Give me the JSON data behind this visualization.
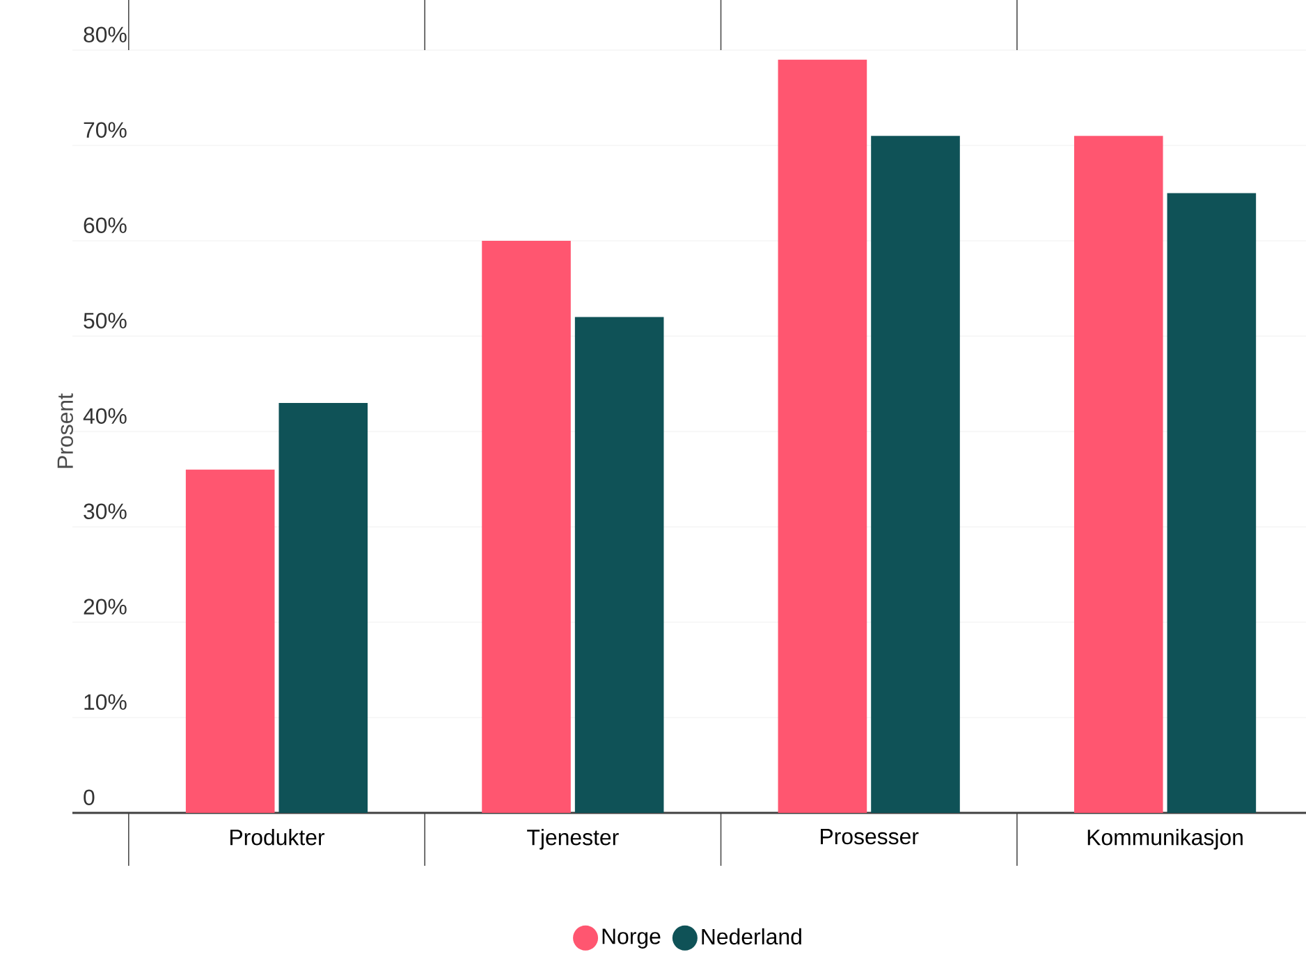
{
  "chart_data": {
    "type": "bar",
    "ylabel": "Prosent",
    "categories": [
      "Produkter",
      "Tjenester",
      "Prosesser",
      "Kommunikasjon"
    ],
    "series": [
      {
        "name": "Norge",
        "color": "#ff5670",
        "values": [
          36,
          60,
          79,
          71
        ]
      },
      {
        "name": "Nederland",
        "color": "#0f5257",
        "values": [
          43,
          52,
          71,
          65
        ]
      }
    ],
    "ylim": [
      0,
      80
    ],
    "yticks": [
      0,
      {
        "value": 10,
        "label": "10%"
      },
      {
        "value": 20,
        "label": "20%"
      },
      {
        "value": 30,
        "label": "30%"
      },
      {
        "value": 40,
        "label": "40%"
      },
      {
        "value": 50,
        "label": "50%"
      },
      {
        "value": 60,
        "label": "60%"
      },
      {
        "value": 70,
        "label": "70%"
      },
      {
        "value": 80,
        "label": "80%"
      }
    ],
    "grid": "y",
    "legend": "bottom"
  }
}
